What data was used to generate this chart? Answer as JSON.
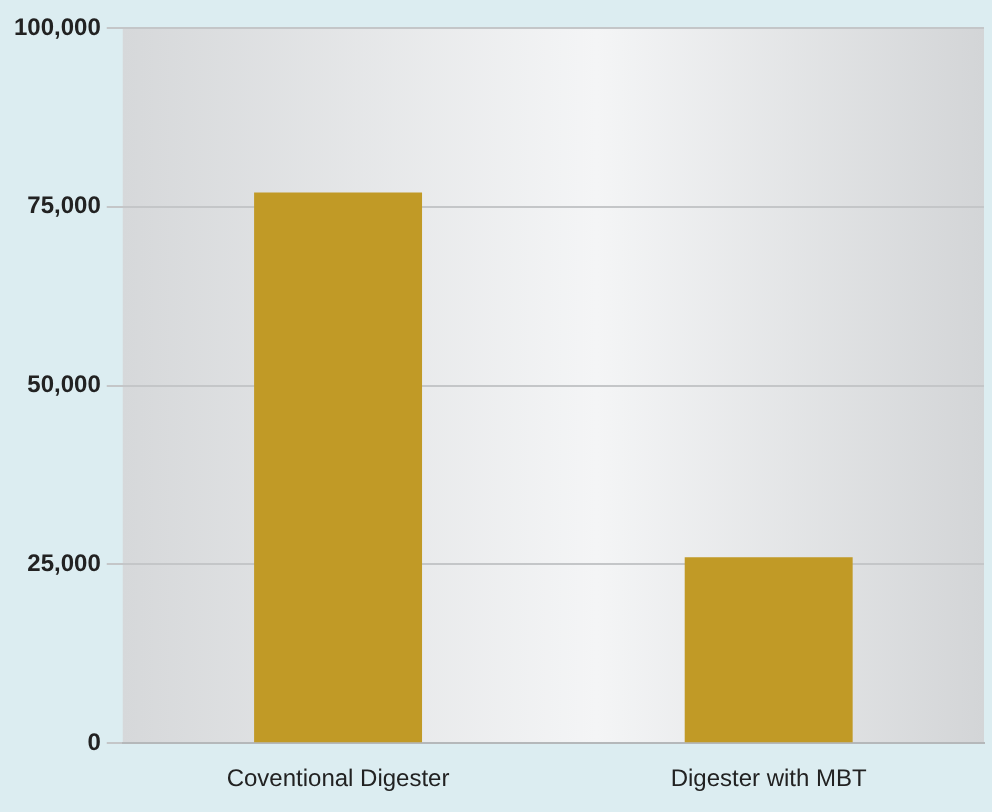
{
  "chart_data": {
    "type": "bar",
    "categories": [
      "Coventional Digester",
      "Digester with MBT"
    ],
    "values": [
      77000,
      26000
    ],
    "color": "#c19a26",
    "ylim": [
      0,
      100000
    ],
    "yticks": [
      {
        "value": 0,
        "label": "0"
      },
      {
        "value": 25000,
        "label": "25,000"
      },
      {
        "value": 50000,
        "label": "50,000"
      },
      {
        "value": 75000,
        "label": "75,000"
      },
      {
        "value": 100000,
        "label": "100,000"
      }
    ],
    "grid": "y"
  }
}
